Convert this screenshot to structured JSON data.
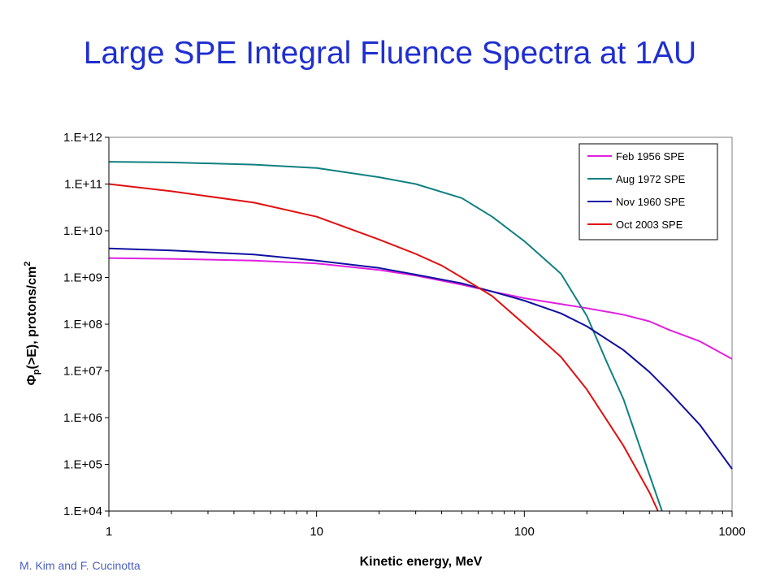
{
  "slide": {
    "title": "Large SPE Integral Fluence Spectra at 1AU",
    "credit": "M. Kim and F. Cucinotta"
  },
  "chart_data": {
    "type": "line",
    "title": "",
    "xlabel": "Kinetic energy, MeV",
    "ylabel_parts": {
      "symbol": "Φ",
      "subscript": "p",
      "rest": "(>E), protons/cm",
      "superscript": "2"
    },
    "x_scale": "log",
    "y_scale": "log",
    "xlim": [
      1,
      1000
    ],
    "ylim": [
      10000,
      1000000000000
    ],
    "x_ticks": [
      1,
      10,
      100,
      1000
    ],
    "x_tick_labels": [
      "1",
      "10",
      "100",
      "1000"
    ],
    "y_ticks": [
      10000.0,
      100000.0,
      1000000.0,
      10000000.0,
      100000000.0,
      1000000000.0,
      10000000000.0,
      100000000000.0,
      1000000000000.0
    ],
    "y_tick_labels": [
      "1.E+04",
      "1.E+05",
      "1.E+06",
      "1.E+07",
      "1.E+08",
      "1.E+09",
      "1.E+10",
      "1.E+11",
      "1.E+12"
    ],
    "grid": false,
    "legend_position": "top-right",
    "series": [
      {
        "name": "Feb 1956 SPE",
        "color": "#e020e0",
        "points": [
          [
            1,
            2600000000.0
          ],
          [
            2,
            2500000000.0
          ],
          [
            5,
            2300000000.0
          ],
          [
            10,
            2000000000.0
          ],
          [
            20,
            1450000000.0
          ],
          [
            30,
            1100000000.0
          ],
          [
            50,
            700000000.0
          ],
          [
            70,
            500000000.0
          ],
          [
            100,
            360000000.0
          ],
          [
            150,
            270000000.0
          ],
          [
            200,
            220000000.0
          ],
          [
            300,
            160000000.0
          ],
          [
            400,
            115000000.0
          ],
          [
            500,
            75000000.0
          ],
          [
            700,
            43000000.0
          ],
          [
            1000,
            18000000.0
          ]
        ]
      },
      {
        "name": "Aug 1972 SPE",
        "color": "#108080",
        "points": [
          [
            1,
            300000000000.0
          ],
          [
            2,
            290000000000.0
          ],
          [
            5,
            260000000000.0
          ],
          [
            10,
            220000000000.0
          ],
          [
            20,
            140000000000.0
          ],
          [
            30,
            100000000000.0
          ],
          [
            50,
            50000000000.0
          ],
          [
            70,
            20000000000.0
          ],
          [
            100,
            6000000000.0
          ],
          [
            150,
            1200000000.0
          ],
          [
            200,
            150000000.0
          ],
          [
            250,
            15000000.0
          ],
          [
            300,
            2500000.0
          ],
          [
            400,
            60000.0
          ],
          [
            460,
            10000.0
          ]
        ]
      },
      {
        "name": "Nov 1960 SPE",
        "color": "#1010a0",
        "points": [
          [
            1,
            4200000000.0
          ],
          [
            2,
            3800000000.0
          ],
          [
            5,
            3100000000.0
          ],
          [
            10,
            2300000000.0
          ],
          [
            20,
            1600000000.0
          ],
          [
            30,
            1150000000.0
          ],
          [
            50,
            750000000.0
          ],
          [
            70,
            500000000.0
          ],
          [
            100,
            320000000.0
          ],
          [
            150,
            170000000.0
          ],
          [
            200,
            90000000.0
          ],
          [
            300,
            28000000.0
          ],
          [
            400,
            9500000.0
          ],
          [
            500,
            3500000.0
          ],
          [
            700,
            700000.0
          ],
          [
            1000,
            80000.0
          ]
        ]
      },
      {
        "name": "Oct 2003 SPE",
        "color": "#e01010",
        "points": [
          [
            1,
            100000000000.0
          ],
          [
            2,
            70000000000.0
          ],
          [
            5,
            40000000000.0
          ],
          [
            10,
            20000000000.0
          ],
          [
            20,
            6500000000.0
          ],
          [
            30,
            3200000000.0
          ],
          [
            40,
            1800000000.0
          ],
          [
            50,
            1000000000.0
          ],
          [
            70,
            400000000.0
          ],
          [
            100,
            100000000.0
          ],
          [
            150,
            20000000.0
          ],
          [
            200,
            4000000.0
          ],
          [
            300,
            250000.0
          ],
          [
            400,
            25000.0
          ],
          [
            440,
            10000.0
          ]
        ]
      }
    ]
  }
}
